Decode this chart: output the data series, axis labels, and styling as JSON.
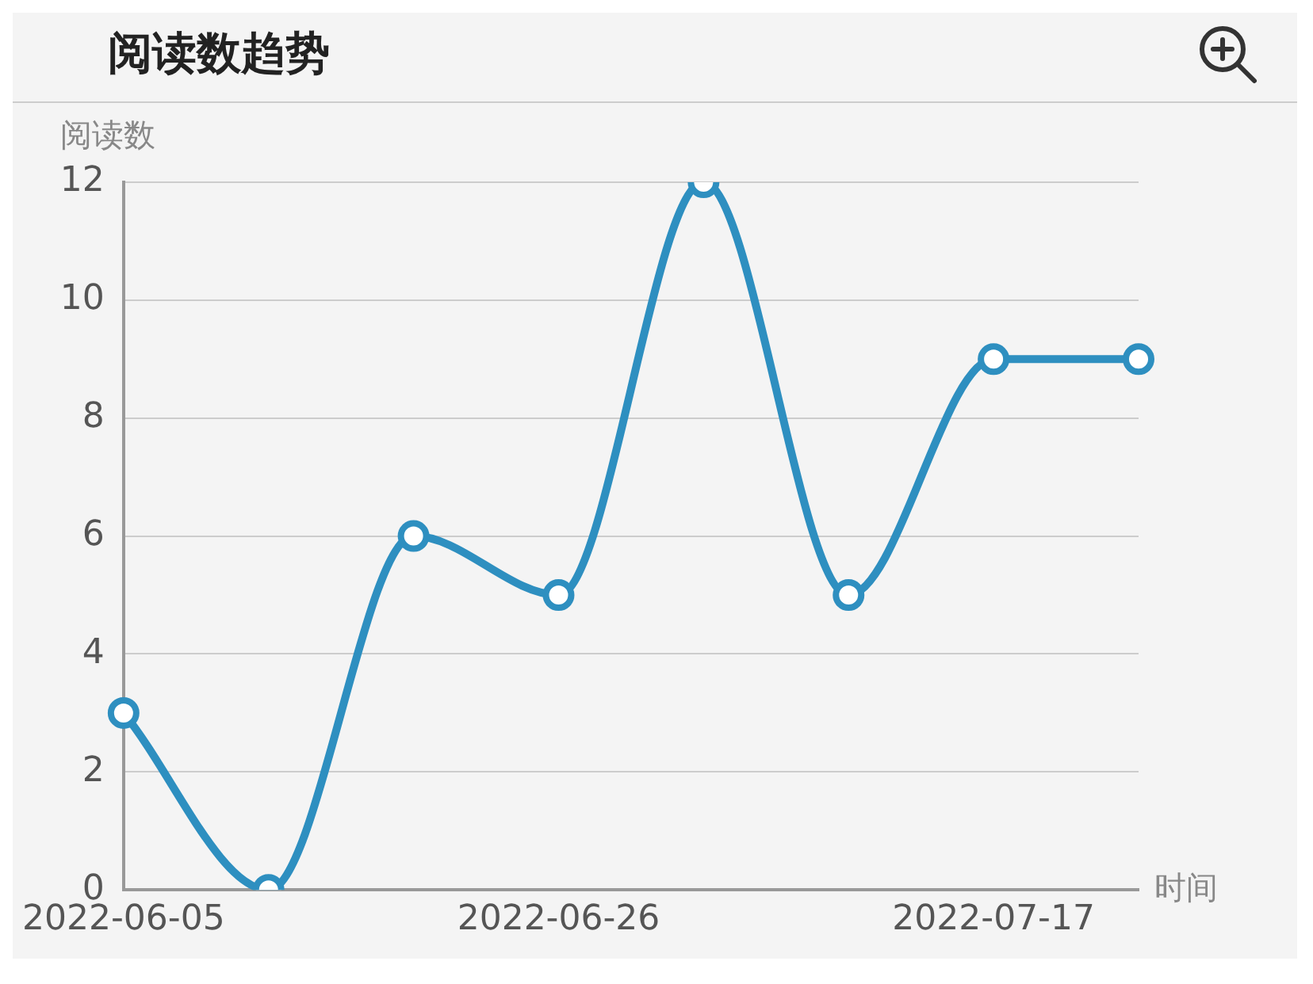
{
  "chart_data": {
    "type": "line",
    "title": "阅读数趋势",
    "ylabel": "阅读数",
    "xlabel": "时间",
    "categories": [
      "2022-06-05",
      null,
      null,
      "2022-06-26",
      null,
      null,
      "2022-07-17",
      null
    ],
    "series": [
      {
        "color": "#2e8fc0",
        "values": [
          3,
          0,
          6,
          5,
          12,
          5,
          9,
          9
        ]
      }
    ],
    "ylim": [
      0,
      12
    ],
    "yticks": [
      0,
      2,
      4,
      6,
      8,
      10,
      12
    ],
    "grid": "y",
    "marker": "circle",
    "legend": false
  }
}
